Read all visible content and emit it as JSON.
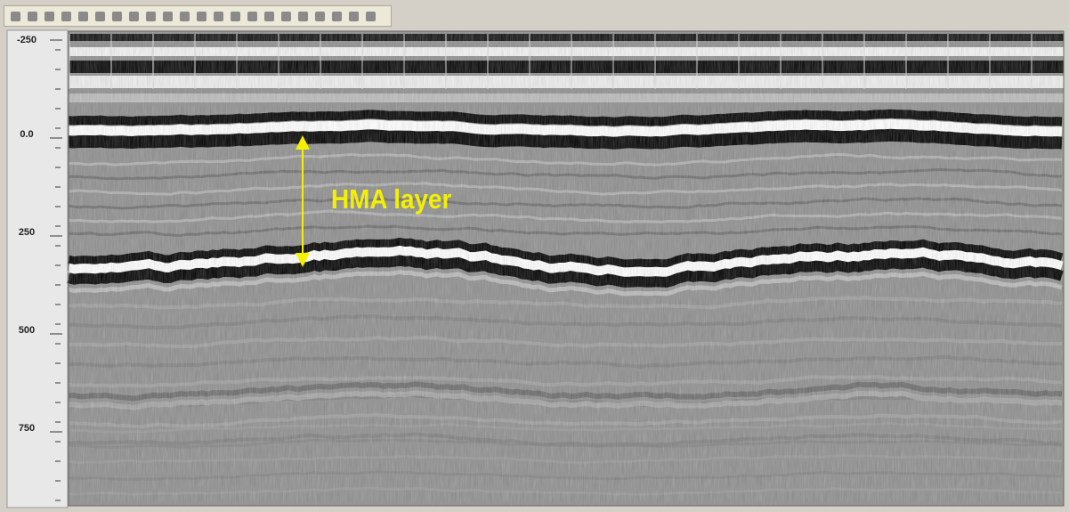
{
  "depth_axis": {
    "labels": [
      "-250",
      "0.0",
      "250",
      "500",
      "750"
    ]
  },
  "annotation": {
    "label": "HMA layer"
  }
}
